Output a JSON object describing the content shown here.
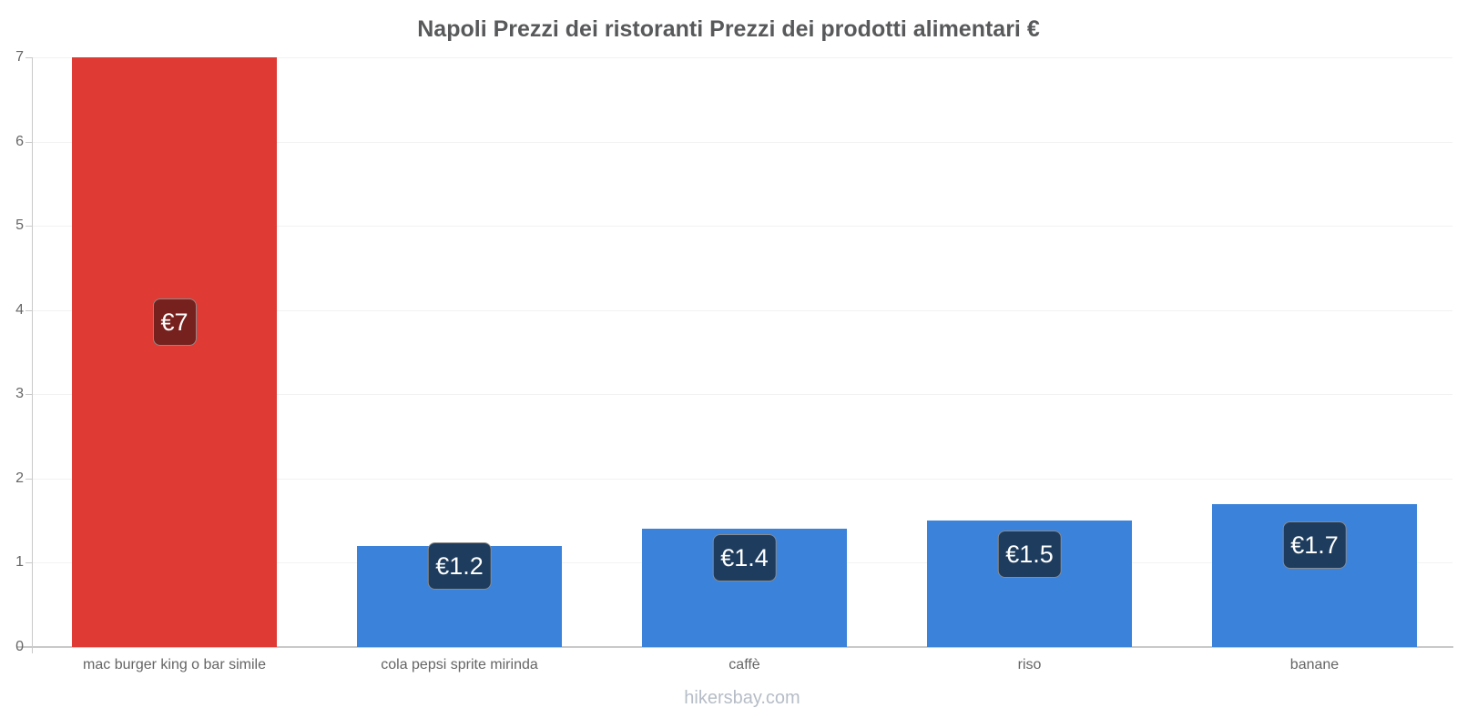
{
  "title": "Napoli Prezzi dei ristoranti Prezzi dei prodotti alimentari €",
  "footer": "hikersbay.com",
  "chart_data": {
    "type": "bar",
    "title": "Napoli Prezzi dei ristoranti Prezzi dei prodotti alimentari €",
    "categories": [
      "mac burger king o bar simile",
      "cola pepsi sprite mirinda",
      "caffè",
      "riso",
      "banane"
    ],
    "values": [
      7,
      1.2,
      1.4,
      1.5,
      1.7
    ],
    "value_labels": [
      "€7",
      "€1.2",
      "€1.4",
      "€1.5",
      "€1.7"
    ],
    "bar_colors": [
      "#df3a34",
      "#3b82db",
      "#3b82db",
      "#3b82db",
      "#3b82db"
    ],
    "value_label_bg_colors": [
      "#77211e",
      "#1e3d5e",
      "#1e3d5e",
      "#1e3d5e",
      "#1e3d5e"
    ],
    "currency": "€",
    "ylabel": "",
    "xlabel": "",
    "yticks": [
      0,
      1,
      2,
      3,
      4,
      5,
      6,
      7
    ],
    "ylim": [
      0,
      7
    ],
    "grid": true,
    "legend": "none",
    "watermark": "hikersbay.com",
    "colors": {
      "title_text": "#58595b",
      "axis_text": "#666565",
      "axis_line": "#c9c9c9",
      "gridline": "#f2f2f2",
      "value_label_text": "#ffffff",
      "footer_text": "#b6bdc7",
      "background": "#ffffff"
    }
  }
}
